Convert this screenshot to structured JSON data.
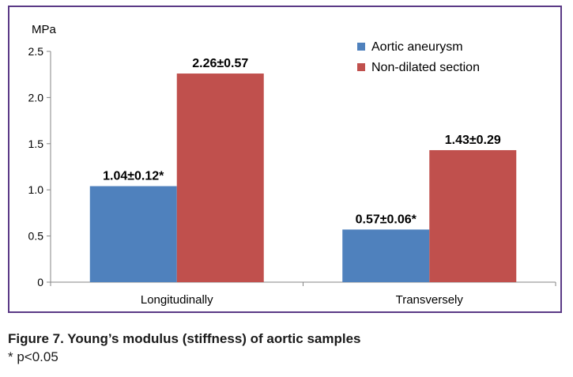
{
  "chart_data": {
    "type": "bar",
    "title": "",
    "unit_label": "MPa",
    "xlabel": "",
    "ylabel": "",
    "ylim": [
      0,
      2.5
    ],
    "yticks": [
      "0",
      "0.5",
      "1.0",
      "1.5",
      "2.0",
      "2.5"
    ],
    "ytick_values": [
      0,
      0.5,
      1.0,
      1.5,
      2.0,
      2.5
    ],
    "categories": [
      "Longitudinally",
      "Transversely"
    ],
    "series": [
      {
        "name": "Aortic aneurysm",
        "color": "#4f81bd",
        "values": [
          1.04,
          0.57
        ],
        "labels": [
          "1.04±0.12*",
          "0.57±0.06*"
        ]
      },
      {
        "name": "Non-dilated section",
        "color": "#c0504d",
        "values": [
          2.26,
          1.43
        ],
        "labels": [
          "2.26±0.57",
          "1.43±0.29"
        ]
      }
    ],
    "grid": false,
    "legend_position": "top-right"
  },
  "caption": "Figure 7. Young’s modulus (stiffness) of aortic samples",
  "footnote": "* p<0.05"
}
